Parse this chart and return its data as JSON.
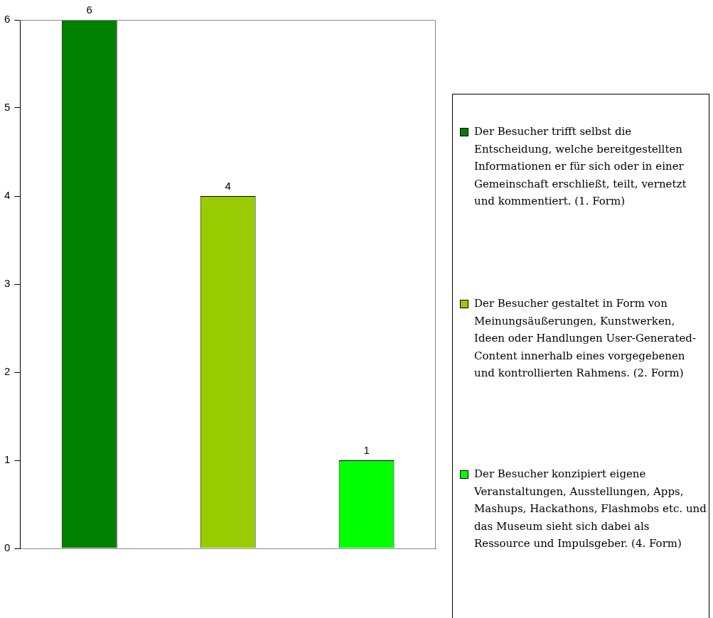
{
  "chart_data": {
    "type": "bar",
    "categories": [
      null,
      null,
      null
    ],
    "series": [
      {
        "name": "Der Besucher trifft selbst die Entscheidung, welche bereitgestellten Informationen er für sich oder in einer Gemeinschaft erschließt, teilt, vernetzt und kommentiert. (1. Form)",
        "color": "#008000",
        "values": [
          6,
          null,
          null
        ]
      },
      {
        "name": "Der Besucher gestaltet in Form von Meinungsäußerungen, Kunstwerken, Ideen oder Handlungen User-Generated-Content innerhalb eines vorgegebenen und kontrollierten Rahmens. (2. Form)",
        "color": "#99cc00",
        "values": [
          null,
          4,
          null
        ]
      },
      {
        "name": "Der Besucher konzipiert eigene Veranstaltungen, Ausstellungen, Apps, Mashups, Hackathons, Flashmobs etc. und das Museum sieht sich dabei als Ressource und Impulsgeber. (4. Form)",
        "color": "#00ff00",
        "values": [
          null,
          null,
          1
        ]
      }
    ],
    "ylim": [
      0,
      6
    ],
    "yticks": [
      0,
      1,
      2,
      3,
      4,
      5,
      6
    ],
    "grid": false,
    "legend": "right",
    "data_labels": true
  }
}
